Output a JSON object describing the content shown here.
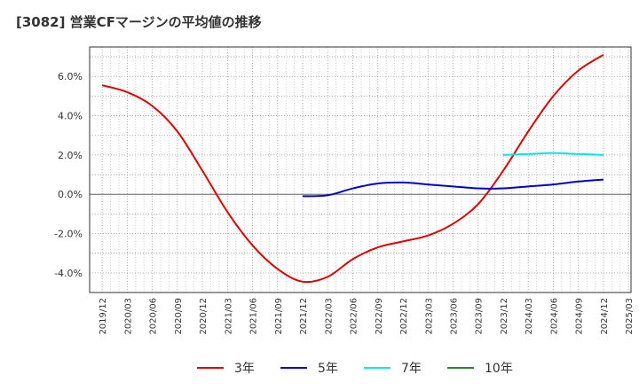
{
  "chart_data": {
    "type": "line",
    "title": "[3082]  営業CFマージンの平均値の推移",
    "xlabel": "",
    "ylabel": "",
    "grid": true,
    "legend_position": "bottom",
    "ylim": [
      -5.0,
      7.5
    ],
    "y_ticks": [
      "6.0%",
      "4.0%",
      "2.0%",
      "0.0%",
      "-2.0%",
      "-4.0%"
    ],
    "y_tick_values": [
      6,
      4,
      2,
      0,
      -2,
      -4
    ],
    "x_tick_labels": [
      "2019/12",
      "2020/03",
      "2020/06",
      "2020/09",
      "2020/12",
      "2021/03",
      "2021/06",
      "2021/09",
      "2021/12",
      "2022/03",
      "2022/06",
      "2022/09",
      "2022/12",
      "2023/03",
      "2023/06",
      "2023/09",
      "2023/12",
      "2024/03",
      "2024/06",
      "2024/09",
      "2024/12",
      "2025/03"
    ],
    "series": [
      {
        "name": "3年",
        "color": "#dd0000",
        "x": [
          "2019/12",
          "2020/03",
          "2020/06",
          "2020/09",
          "2020/12",
          "2021/03",
          "2021/06",
          "2021/09",
          "2021/12",
          "2022/03",
          "2022/06",
          "2022/09",
          "2022/12",
          "2023/03",
          "2023/06",
          "2023/09",
          "2023/12",
          "2024/03",
          "2024/06",
          "2024/09",
          "2024/12"
        ],
        "values": [
          5.55,
          5.2,
          4.5,
          3.2,
          1.2,
          -0.9,
          -2.6,
          -3.8,
          -4.45,
          -4.2,
          -3.3,
          -2.7,
          -2.4,
          -2.1,
          -1.5,
          -0.5,
          1.2,
          3.2,
          5.0,
          6.3,
          7.1
        ]
      },
      {
        "name": "5年",
        "color": "#0000cc",
        "x": [
          "2021/12",
          "2022/03",
          "2022/06",
          "2022/09",
          "2022/12",
          "2023/03",
          "2023/06",
          "2023/09",
          "2023/12",
          "2024/03",
          "2024/06",
          "2024/09",
          "2024/12"
        ],
        "values": [
          -0.1,
          -0.05,
          0.3,
          0.55,
          0.6,
          0.5,
          0.4,
          0.3,
          0.3,
          0.4,
          0.5,
          0.65,
          0.75
        ]
      },
      {
        "name": "7年",
        "color": "#00e5ee",
        "x": [
          "2023/12",
          "2024/03",
          "2024/06",
          "2024/09",
          "2024/12"
        ],
        "values": [
          2.0,
          2.05,
          2.1,
          2.05,
          2.0
        ]
      },
      {
        "name": "10年",
        "color": "#228b22",
        "x": [],
        "values": []
      }
    ]
  }
}
